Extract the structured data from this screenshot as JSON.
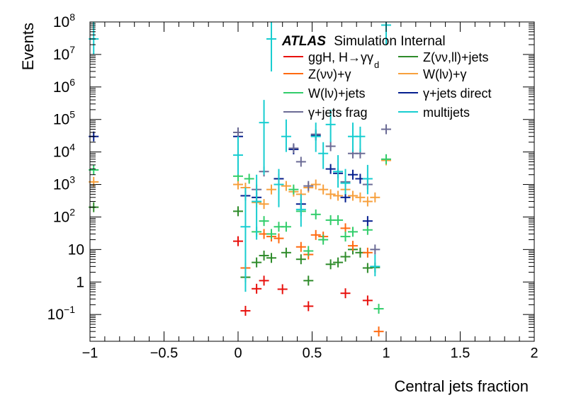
{
  "chart_data": {
    "type": "scatter",
    "xlabel": "Central jets fraction",
    "ylabel": "Events",
    "xlim": [
      -1,
      2
    ],
    "ylim": [
      0.015,
      100000000
    ],
    "log_y": true,
    "legend_placement": "top-right",
    "atlas_label": {
      "bold": "ATLAS",
      "rest": "Simulation Internal"
    },
    "x_ticks": [
      {
        "v": -1,
        "label": "−1"
      },
      {
        "v": -0.5,
        "label": "−0.5"
      },
      {
        "v": 0,
        "label": "0"
      },
      {
        "v": 0.5,
        "label": "0.5"
      },
      {
        "v": 1,
        "label": "1"
      },
      {
        "v": 1.5,
        "label": "1.5"
      },
      {
        "v": 2,
        "label": "2"
      }
    ],
    "y_ticks": [
      {
        "v": 0.1,
        "base": "10",
        "exp": "−1"
      },
      {
        "v": 1,
        "base": "1",
        "exp": ""
      },
      {
        "v": 10,
        "base": "10",
        "exp": ""
      },
      {
        "v": 100,
        "base": "10",
        "exp": "2"
      },
      {
        "v": 1000,
        "base": "10",
        "exp": "3"
      },
      {
        "v": 10000,
        "base": "10",
        "exp": "4"
      },
      {
        "v": 100000,
        "base": "10",
        "exp": "5"
      },
      {
        "v": 1000000,
        "base": "10",
        "exp": "6"
      },
      {
        "v": 10000000,
        "base": "10",
        "exp": "7"
      },
      {
        "v": 100000000,
        "base": "10",
        "exp": "8"
      }
    ],
    "series": [
      {
        "name": "ggH, H→γγ",
        "name_sub": "d",
        "color": "#e8100c",
        "points": [
          [
            0,
            18
          ],
          [
            0.05,
            0.13
          ],
          [
            0.125,
            0.62
          ],
          [
            0.175,
            1.1
          ],
          [
            0.3,
            0.6
          ],
          [
            0.475,
            0.18
          ],
          [
            0.725,
            0.45
          ],
          [
            0.875,
            0.27
          ]
        ]
      },
      {
        "name": "Z(νν,ll)+jets",
        "name_sub": "",
        "color": "#2e8b2a",
        "points": [
          [
            -0.975,
            200
          ],
          [
            0,
            150
          ],
          [
            0.05,
            1.4
          ],
          [
            0.125,
            4
          ],
          [
            0.175,
            6.5
          ],
          [
            0.225,
            5.5
          ],
          [
            0.325,
            8
          ],
          [
            0.425,
            5
          ],
          [
            0.475,
            1.1
          ],
          [
            0.625,
            3.5
          ],
          [
            0.675,
            4
          ],
          [
            0.725,
            6
          ],
          [
            0.775,
            10
          ],
          [
            0.825,
            8
          ],
          [
            0.875,
            2.7
          ],
          [
            0.925,
            2.8
          ]
        ]
      },
      {
        "name": "Z(νν)+γ",
        "name_sub": "",
        "color": "#ff6a10",
        "points": [
          [
            0.05,
            2.7
          ],
          [
            0.175,
            30
          ],
          [
            0.225,
            25
          ],
          [
            0.275,
            22
          ],
          [
            0.425,
            12
          ],
          [
            0.475,
            7
          ],
          [
            0.525,
            28
          ],
          [
            0.575,
            25
          ],
          [
            0.725,
            45
          ],
          [
            0.775,
            13
          ],
          [
            0.875,
            8
          ],
          [
            0.95,
            0.03
          ]
        ]
      },
      {
        "name": "W(lν)+γ",
        "name_sub": "",
        "color": "#f7a03d",
        "points": [
          [
            -0.975,
            1200
          ],
          [
            0,
            1000
          ],
          [
            0.05,
            800
          ],
          [
            0.125,
            280
          ],
          [
            0.175,
            250
          ],
          [
            0.225,
            700
          ],
          [
            0.275,
            1500
          ],
          [
            0.325,
            900
          ],
          [
            0.375,
            600
          ],
          [
            0.425,
            500
          ],
          [
            0.475,
            800
          ],
          [
            0.525,
            1000
          ],
          [
            0.575,
            700
          ],
          [
            0.625,
            500
          ],
          [
            0.675,
            450
          ],
          [
            0.725,
            700
          ],
          [
            0.775,
            450
          ],
          [
            0.825,
            400
          ],
          [
            0.875,
            300
          ],
          [
            0.925,
            400
          ],
          [
            1.0,
            5500
          ]
        ]
      },
      {
        "name": "W(lν)+jets",
        "name_sub": "",
        "color": "#31cd6a",
        "points": [
          [
            -0.975,
            2800
          ],
          [
            0,
            1800
          ],
          [
            0.075,
            1500
          ],
          [
            0.125,
            35
          ],
          [
            0.175,
            75
          ],
          [
            0.225,
            30
          ],
          [
            0.275,
            50
          ],
          [
            0.325,
            50
          ],
          [
            0.375,
            700
          ],
          [
            0.425,
            150
          ],
          [
            0.475,
            9
          ],
          [
            0.525,
            120
          ],
          [
            0.575,
            20
          ],
          [
            0.625,
            80
          ],
          [
            0.675,
            80
          ],
          [
            0.725,
            25
          ],
          [
            0.775,
            35
          ],
          [
            0.875,
            40
          ],
          [
            0.95,
            0.15
          ],
          [
            1.0,
            6000
          ]
        ]
      },
      {
        "name": "γ+jets direct",
        "name_sub": "",
        "color": "#051f8f",
        "points": [
          [
            -0.975,
            30000
          ],
          [
            0,
            30000
          ],
          [
            0.05,
            450
          ],
          [
            0.125,
            400
          ],
          [
            0.275,
            1500
          ],
          [
            0.375,
            12000
          ],
          [
            0.425,
            250
          ],
          [
            0.525,
            32000
          ],
          [
            0.625,
            3000
          ],
          [
            0.675,
            2200
          ],
          [
            0.725,
            400
          ],
          [
            0.775,
            2000
          ],
          [
            0.825,
            1500
          ],
          [
            0.875,
            75
          ]
        ]
      },
      {
        "name": "γ+jets frag",
        "name_sub": "",
        "color": "#6b6b95",
        "points": [
          [
            0,
            40000
          ],
          [
            0.125,
            700
          ],
          [
            0.175,
            2500
          ],
          [
            0.375,
            13000
          ],
          [
            0.425,
            5000
          ],
          [
            0.475,
            900
          ],
          [
            0.525,
            35000
          ],
          [
            0.625,
            15000
          ],
          [
            0.725,
            1200
          ],
          [
            0.775,
            9000
          ],
          [
            0.825,
            9000
          ],
          [
            0.875,
            1000
          ],
          [
            0.925,
            10
          ],
          [
            1.0,
            50000
          ]
        ]
      },
      {
        "name": "multijets",
        "name_sub": "",
        "color": "#17cdd0",
        "points": [
          [
            -0.975,
            30000000,
            10000000,
            100000000
          ],
          [
            0,
            8000,
            2000,
            30000
          ],
          [
            0.05,
            50,
            0.5,
            800
          ],
          [
            0.125,
            300,
            20,
            2000
          ],
          [
            0.175,
            80000,
            2000,
            400000
          ],
          [
            0.225,
            30000000,
            3000000,
            200000000
          ],
          [
            0.275,
            1000,
            200,
            3000
          ],
          [
            0.325,
            30000,
            10000,
            100000
          ],
          [
            0.425,
            170,
            50,
            500
          ],
          [
            0.525,
            30000,
            10000,
            80000
          ],
          [
            0.575,
            9000,
            3000,
            20000
          ],
          [
            0.625,
            70000,
            20000,
            200000
          ],
          [
            0.675,
            2500,
            800,
            8000
          ],
          [
            0.725,
            1100,
            500,
            3000
          ],
          [
            0.775,
            30000,
            10000,
            80000
          ],
          [
            0.825,
            30000,
            10000,
            60000
          ],
          [
            0.875,
            1500,
            500,
            4000
          ],
          [
            0.925,
            3,
            1.5,
            7
          ],
          [
            1.0,
            80000000,
            20000000,
            200000000
          ]
        ]
      }
    ]
  }
}
